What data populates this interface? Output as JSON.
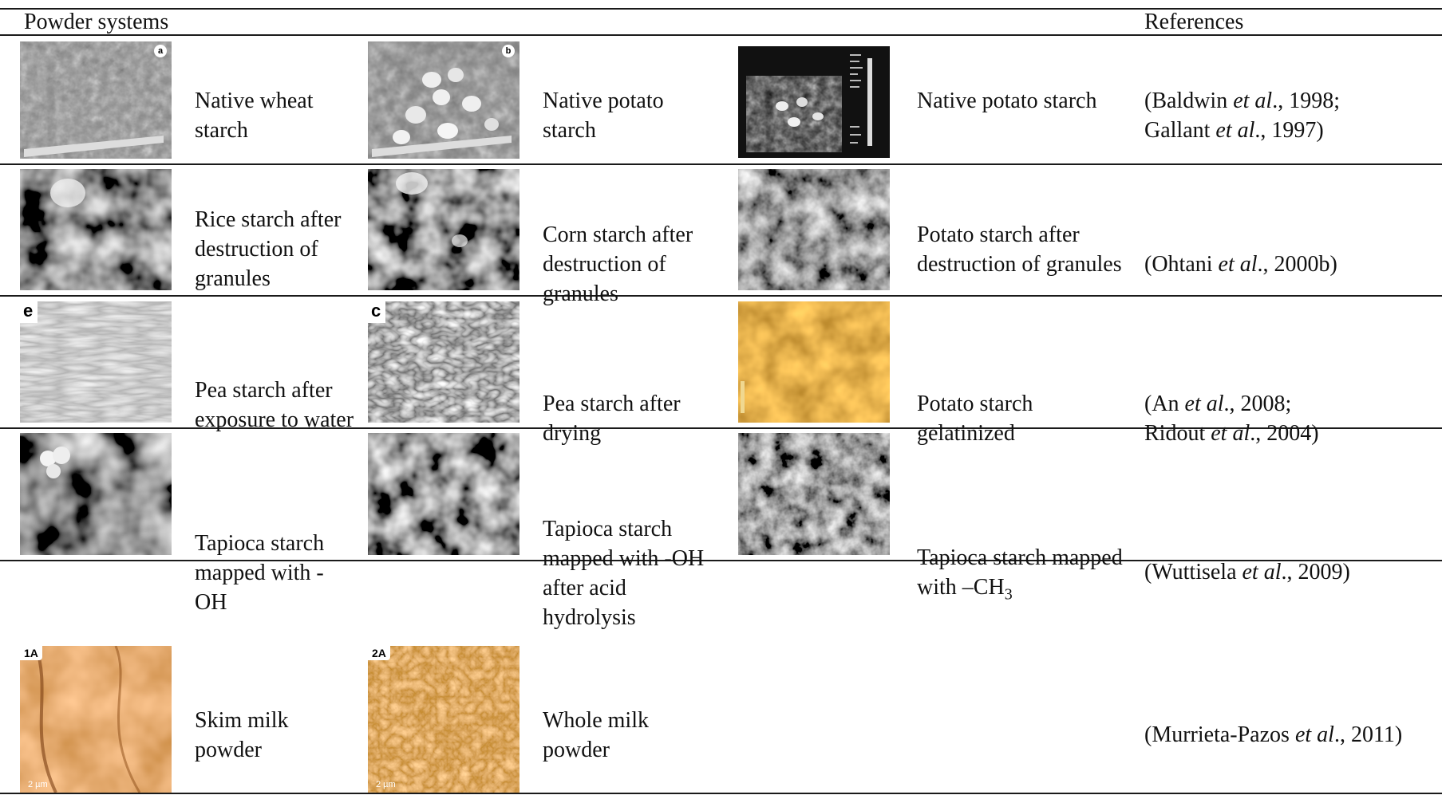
{
  "header": {
    "col1": "Powder systems",
    "col2": "References"
  },
  "rows": [
    {
      "captions": [
        "Native wheat starch",
        "Native potato starch",
        "Native potato starch"
      ],
      "image_tags": [
        "a",
        "b",
        ""
      ],
      "reference": [
        {
          "a": "(Baldwin ",
          "i": "et al",
          "b": "., 1998;"
        },
        {
          "a": "Gallant ",
          "i": "et al",
          "b": "., 1997)"
        }
      ]
    },
    {
      "captions": [
        "Rice starch after destruction of granules",
        "Corn starch after destruction of granules",
        "Potato starch after destruction of granules"
      ],
      "reference": [
        {
          "a": "(Ohtani ",
          "i": "et al",
          "b": "., 2000b)"
        }
      ]
    },
    {
      "captions": [
        "Pea starch after exposure to water",
        "Pea starch after drying",
        "Potato starch gelatinized"
      ],
      "image_tags": [
        "e",
        "c",
        ""
      ],
      "reference": [
        {
          "a": "(An ",
          "i": "et al",
          "b": "., 2008;"
        },
        {
          "a": "Ridout ",
          "i": "et al",
          "b": "., 2004)"
        }
      ]
    },
    {
      "captions": [
        "Tapioca starch mapped with -OH",
        "Tapioca starch mapped with -OH after acid hydrolysis",
        "Tapioca starch mapped with –CH3"
      ],
      "reference": [
        {
          "a": "(Wuttisela ",
          "i": "et al",
          "b": "., 2009)"
        }
      ]
    },
    {
      "captions": [
        "Skim milk powder",
        "Whole milk powder"
      ],
      "image_tags": [
        "1A",
        "2A"
      ],
      "scale_labels": [
        "2 µm",
        "2 µm"
      ],
      "reference": [
        {
          "a": "(Murrieta-Pazos ",
          "i": "et al",
          "b": "., 2011)"
        }
      ]
    }
  ],
  "colors": {
    "rule": "#1a1a1a",
    "grayscale_image": "#6b6b6b",
    "afm_gold": "#b07818",
    "afm_orange": "#c8751c"
  },
  "icons": [
    "afm-height-image",
    "afm-phase-image",
    "afm-3d-surface-image"
  ]
}
